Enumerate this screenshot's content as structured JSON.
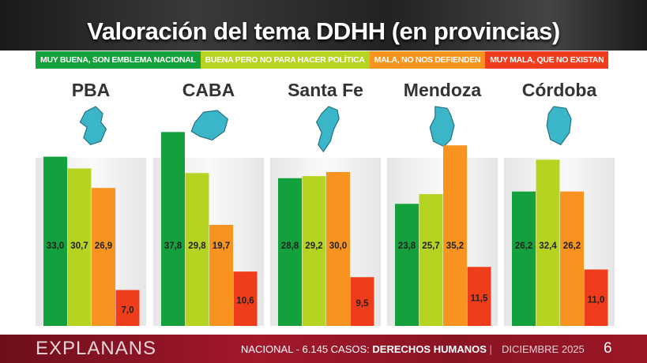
{
  "title": "Valoración del tema DDHH (en provincias)",
  "legend": [
    {
      "label": "MUY BUENA, SON EMBLEMA NACIONAL",
      "color": "#14a03c"
    },
    {
      "label": "BUENA PERO NO PARA HACER POLÍTICA",
      "color": "#b5d321"
    },
    {
      "label": "MALA, NO NOS DEFIENDEN",
      "color": "#f7931e"
    },
    {
      "label": "MUY MALA, QUE NO EXISTAN",
      "color": "#ef3d1c"
    }
  ],
  "chart_data": {
    "type": "bar",
    "categories": [
      "PBA",
      "CABA",
      "Santa Fe",
      "Mendoza",
      "Córdoba"
    ],
    "series": [
      {
        "name": "MUY BUENA, SON EMBLEMA NACIONAL",
        "values": [
          33.0,
          37.8,
          28.8,
          23.8,
          26.2
        ],
        "color": "#14a03c"
      },
      {
        "name": "BUENA PERO NO PARA HACER POLÍTICA",
        "values": [
          30.7,
          29.8,
          29.2,
          25.7,
          32.4
        ],
        "color": "#b5d321"
      },
      {
        "name": "MALA, NO NOS DEFIENDEN",
        "values": [
          26.9,
          19.7,
          30.0,
          35.2,
          26.2
        ],
        "color": "#f7931e"
      },
      {
        "name": "MUY MALA, QUE NO EXISTAN",
        "values": [
          7.0,
          10.6,
          9.5,
          11.5,
          11.0
        ],
        "color": "#ef3d1c"
      }
    ],
    "data_labels": [
      [
        "33,0",
        "30,7",
        "26,9",
        "7,0"
      ],
      [
        "37,8",
        "29,8",
        "19,7",
        "10,6"
      ],
      [
        "28,8",
        "29,2",
        "30,0",
        "9,5"
      ],
      [
        "23,8",
        "25,7",
        "35,2",
        "11,5"
      ],
      [
        "26,2",
        "32,4",
        "26,2",
        "11,0"
      ]
    ],
    "ylim": [
      0,
      40
    ],
    "grid": false
  },
  "map_color": "#3bb6c9",
  "footer": {
    "brand": "EXPLANANS",
    "meta_prefix": "NACIONAL - 6.145 CASOS: ",
    "meta_topic": "DERECHOS HUMANOS",
    "date": "DICIEMBRE 2025",
    "page": "6"
  }
}
